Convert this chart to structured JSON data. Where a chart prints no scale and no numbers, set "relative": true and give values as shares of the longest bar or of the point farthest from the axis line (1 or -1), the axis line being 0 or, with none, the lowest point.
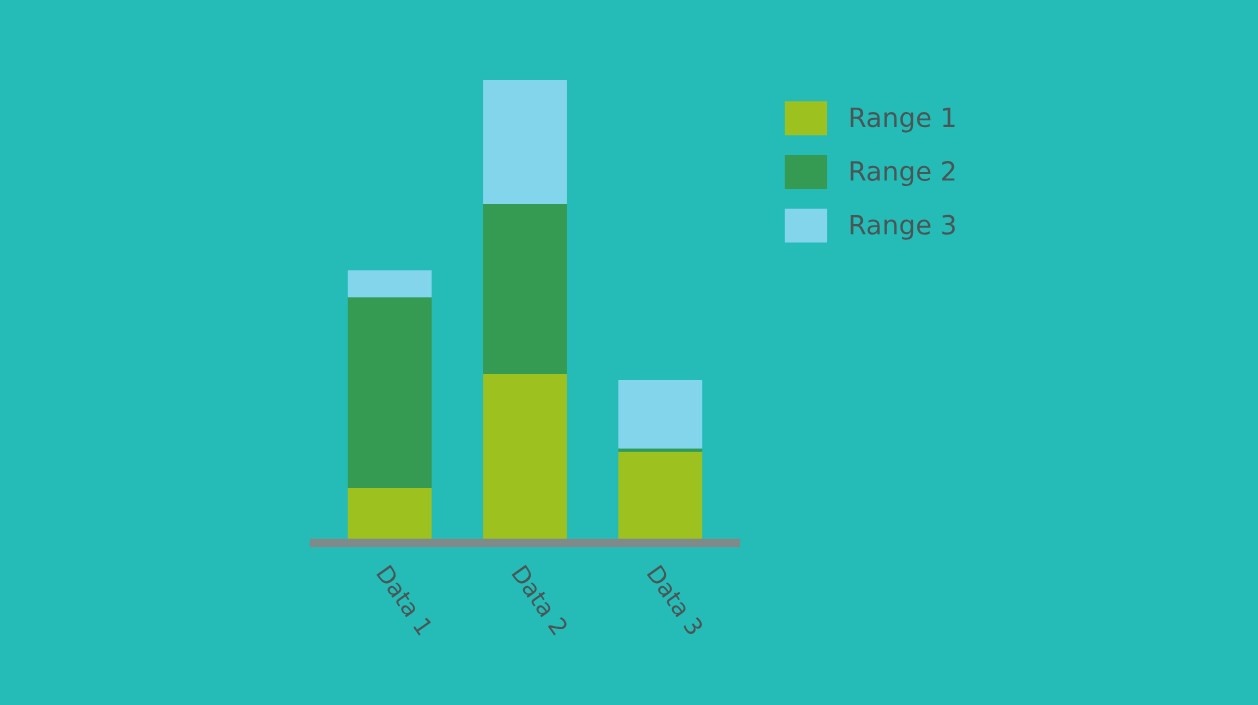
{
  "chart_data": {
    "type": "bar",
    "stacked": true,
    "relative": true,
    "legend": "top right",
    "categories": [
      "Data 1",
      "Data 2",
      "Data 3"
    ],
    "series": [
      {
        "name": "Range 1",
        "color": "#9dc11e",
        "values": [
          0.119,
          0.365,
          0.197
        ]
      },
      {
        "name": "Range 2",
        "color": "#359a52",
        "values": [
          0.412,
          0.367,
          0.007
        ]
      },
      {
        "name": "Range 3",
        "color": "#83d5ec",
        "values": [
          0.058,
          0.268,
          0.148
        ]
      }
    ]
  }
}
